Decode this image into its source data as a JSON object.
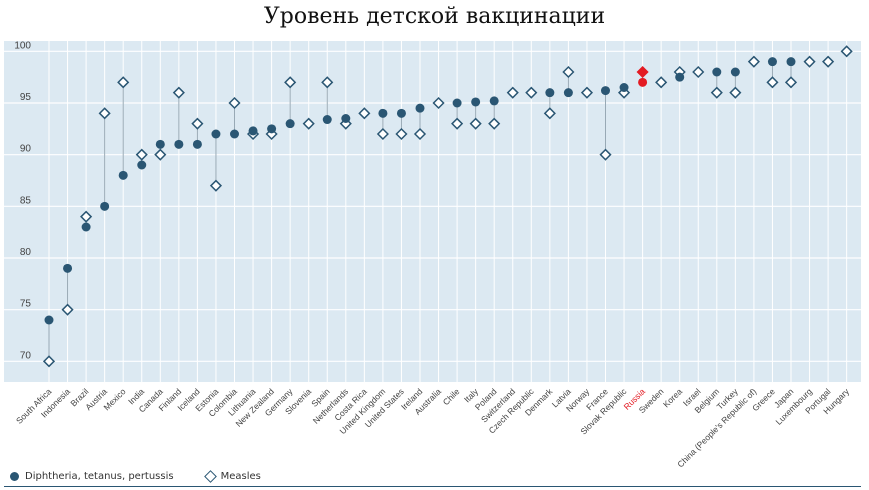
{
  "chart_data": {
    "type": "scatter",
    "title": "Уровень детской вакцинации",
    "ylim": [
      68,
      101
    ],
    "yticks": [
      70,
      75,
      80,
      85,
      90,
      95,
      100
    ],
    "grid": true,
    "legend_position": "bottom-left",
    "highlight_category": "Russia",
    "highlight_color": "#e31b23",
    "colors": {
      "series": "#2a5673",
      "background": "#dce9f2"
    },
    "categories": [
      "South Africa",
      "Indonesia",
      "Brazil",
      "Austria",
      "Mexico",
      "India",
      "Canada",
      "Finland",
      "Iceland",
      "Estonia",
      "Colombia",
      "Lithuania",
      "New Zealand",
      "Germany",
      "Slovenia",
      "Spain",
      "Netherlands",
      "Costa Rica",
      "United Kingdom",
      "United States",
      "Ireland",
      "Australia",
      "Chile",
      "Italy",
      "Poland",
      "Switzerland",
      "Czech Republic",
      "Denmark",
      "Latvia",
      "Norway",
      "France",
      "Slovak Republic",
      "Russia",
      "Sweden",
      "Korea",
      "Israel",
      "Belgium",
      "Turkey",
      "China (People's Republic of)",
      "Greece",
      "Japan",
      "Luxembourg",
      "Portugal",
      "Hungary"
    ],
    "series": [
      {
        "name": "Diphtheria, tetanus, pertussis",
        "marker": "circle",
        "values": [
          74,
          79,
          83,
          85,
          88,
          89,
          91,
          91,
          91,
          92,
          92,
          92.3,
          92.5,
          93,
          null,
          93.4,
          93.5,
          null,
          94,
          94,
          94.5,
          null,
          95,
          95.1,
          95.2,
          null,
          null,
          96,
          96,
          null,
          96.2,
          96.5,
          97,
          null,
          97.5,
          null,
          98,
          98,
          null,
          99,
          99,
          null,
          null,
          null
        ]
      },
      {
        "name": "Measles",
        "marker": "diamond",
        "values": [
          70,
          75,
          84,
          94,
          97,
          90,
          90,
          96,
          93,
          87,
          95,
          92,
          92,
          97,
          93,
          97,
          93,
          94,
          92,
          92,
          92,
          95,
          93,
          93,
          93,
          96,
          96,
          94,
          98,
          96,
          90,
          96,
          98,
          97,
          98,
          98,
          96,
          96,
          99,
          97,
          97,
          99,
          99,
          100
        ]
      }
    ]
  }
}
